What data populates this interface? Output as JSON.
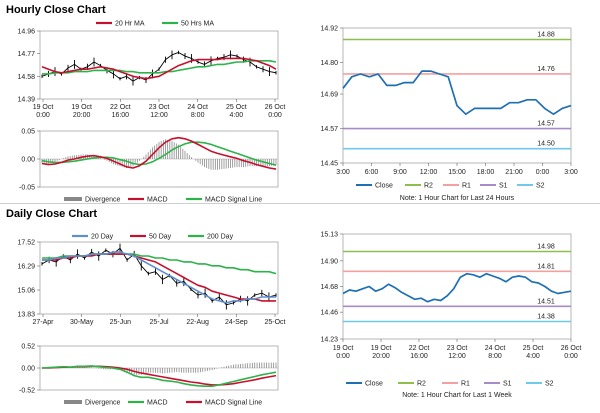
{
  "sections": {
    "hourly_title": "Hourly Close Chart",
    "daily_title": "Daily Close Chart"
  },
  "colors": {
    "close": "#1f6fb4",
    "ma_short": "#c8102e",
    "ma_long": "#2db34a",
    "ma_20_daily": "#5b8fd0",
    "r2": "#8cc04b",
    "r1": "#f2a0a0",
    "s1": "#a98bc9",
    "s2": "#6fc9e8",
    "divergence": "#888888",
    "price_bars": "#000000"
  },
  "chart_data": [
    {
      "id": "hourly_price",
      "type": "line",
      "legend": [
        "20 Hr MA",
        "50 Hrs MA"
      ],
      "legend_position": "top",
      "ylim": [
        14.39,
        14.96
      ],
      "yticks": [
        "14.96",
        "14.77",
        "14.58",
        "14.39"
      ],
      "ytick_values": [
        14.96,
        14.77,
        14.58,
        14.39
      ],
      "xticks": [
        {
          "l1": "19 Oct",
          "l2": "0:00"
        },
        {
          "l1": "19 Oct",
          "l2": "20:00"
        },
        {
          "l1": "22 Oct",
          "l2": "16:00"
        },
        {
          "l1": "23 Oct",
          "l2": "12:00"
        },
        {
          "l1": "24 Oct",
          "l2": "8:00"
        },
        {
          "l1": "25 Oct",
          "l2": "4:00"
        },
        {
          "l1": "26 Oct",
          "l2": "0:00"
        }
      ],
      "series": [
        {
          "name": "Close",
          "values": [
            14.58,
            14.6,
            14.62,
            14.6,
            14.65,
            14.68,
            14.64,
            14.66,
            14.7,
            14.67,
            14.63,
            14.6,
            14.56,
            14.58,
            14.54,
            14.57,
            14.55,
            14.6,
            14.64,
            14.72,
            14.76,
            14.78,
            14.75,
            14.73,
            14.7,
            14.68,
            14.71,
            14.73,
            14.74,
            14.76,
            14.75,
            14.72,
            14.7,
            14.66,
            14.64,
            14.62,
            14.61
          ]
        },
        {
          "name": "20 Hr MA",
          "values": [
            14.66,
            14.64,
            14.62,
            14.61,
            14.62,
            14.63,
            14.64,
            14.64,
            14.65,
            14.66,
            14.65,
            14.64,
            14.62,
            14.6,
            14.58,
            14.57,
            14.56,
            14.57,
            14.58,
            14.61,
            14.64,
            14.67,
            14.69,
            14.71,
            14.72,
            14.72,
            14.72,
            14.72,
            14.73,
            14.73,
            14.73,
            14.73,
            14.72,
            14.71,
            14.69,
            14.67,
            14.64
          ]
        },
        {
          "name": "50 Hrs MA",
          "values": [
            14.6,
            14.6,
            14.61,
            14.61,
            14.61,
            14.62,
            14.62,
            14.62,
            14.63,
            14.63,
            14.63,
            14.63,
            14.63,
            14.62,
            14.62,
            14.61,
            14.61,
            14.61,
            14.61,
            14.62,
            14.62,
            14.63,
            14.64,
            14.65,
            14.66,
            14.66,
            14.67,
            14.68,
            14.68,
            14.69,
            14.7,
            14.7,
            14.71,
            14.71,
            14.71,
            14.71,
            14.7
          ]
        }
      ]
    },
    {
      "id": "hourly_macd",
      "type": "line",
      "legend": [
        "Divergence",
        "MACD",
        "MACD Signal Line"
      ],
      "legend_position": "bottom",
      "ylim": [
        -0.05,
        0.05
      ],
      "yticks": [
        "0.05",
        "0.00",
        "-0.05"
      ],
      "ytick_values": [
        0.05,
        0.0,
        -0.05
      ],
      "series": [
        {
          "name": "MACD",
          "values": [
            -0.008,
            -0.01,
            -0.009,
            -0.006,
            -0.002,
            0.0,
            0.003,
            0.005,
            0.006,
            0.004,
            0.001,
            -0.004,
            -0.009,
            -0.014,
            -0.016,
            -0.012,
            -0.004,
            0.008,
            0.02,
            0.03,
            0.036,
            0.038,
            0.036,
            0.032,
            0.026,
            0.02,
            0.014,
            0.01,
            0.007,
            0.004,
            0.001,
            -0.003,
            -0.006,
            -0.01,
            -0.013,
            -0.016,
            -0.018
          ]
        },
        {
          "name": "MACD Signal Line",
          "values": [
            -0.003,
            -0.005,
            -0.006,
            -0.006,
            -0.005,
            -0.004,
            -0.002,
            0.0,
            0.002,
            0.003,
            0.003,
            0.002,
            -0.001,
            -0.004,
            -0.008,
            -0.01,
            -0.009,
            -0.005,
            0.001,
            0.008,
            0.016,
            0.022,
            0.027,
            0.03,
            0.03,
            0.029,
            0.026,
            0.022,
            0.018,
            0.014,
            0.01,
            0.006,
            0.002,
            -0.002,
            -0.005,
            -0.008,
            -0.011
          ]
        }
      ]
    },
    {
      "id": "hourly_24h",
      "type": "line",
      "title_note": "Note: 1 Hour Chart for Last 24 Hours",
      "ylim": [
        14.45,
        14.92
      ],
      "yticks": [
        "14.92",
        "14.80",
        "14.69",
        "14.57",
        "14.45"
      ],
      "ytick_values": [
        14.92,
        14.8,
        14.69,
        14.57,
        14.45
      ],
      "xticks": [
        "3:00",
        "6:00",
        "9:00",
        "12:00",
        "15:00",
        "18:00",
        "21:00",
        "0:00",
        "3:00"
      ],
      "levels": [
        {
          "name": "R2",
          "value": 14.88,
          "label": "14.88"
        },
        {
          "name": "R1",
          "value": 14.76,
          "label": "14.76"
        },
        {
          "name": "S1",
          "value": 14.57,
          "label": "14.57"
        },
        {
          "name": "S2",
          "value": 14.5,
          "label": "14.50"
        }
      ],
      "legend": [
        "Close",
        "R2",
        "R1",
        "S1",
        "S2"
      ],
      "series": [
        {
          "name": "Close",
          "values": [
            14.71,
            14.75,
            14.76,
            14.75,
            14.76,
            14.72,
            14.72,
            14.73,
            14.73,
            14.77,
            14.77,
            14.76,
            14.75,
            14.65,
            14.62,
            14.64,
            14.64,
            14.64,
            14.64,
            14.66,
            14.66,
            14.67,
            14.67,
            14.64,
            14.62,
            14.64,
            14.65
          ]
        }
      ]
    },
    {
      "id": "daily_price",
      "type": "line",
      "legend": [
        "20 Day",
        "50 Day",
        "200 Day"
      ],
      "legend_position": "top",
      "ylim": [
        13.83,
        17.52
      ],
      "yticks": [
        "17.52",
        "16.29",
        "15.06",
        "13.83"
      ],
      "ytick_values": [
        17.52,
        16.29,
        15.06,
        13.83
      ],
      "xticks": [
        "27-Apr",
        "30-May",
        "25-Jun",
        "25-Jul",
        "22-Aug",
        "24-Sep",
        "25-Oct"
      ],
      "series": [
        {
          "name": "Close",
          "values": [
            16.4,
            16.6,
            16.5,
            16.8,
            16.6,
            16.9,
            16.7,
            17.0,
            16.8,
            17.1,
            16.9,
            17.2,
            16.6,
            16.9,
            16.3,
            15.9,
            16.0,
            15.6,
            15.8,
            15.4,
            15.5,
            15.1,
            14.8,
            14.9,
            14.5,
            14.7,
            14.3,
            14.4,
            14.6,
            14.5,
            14.8,
            14.9,
            14.7,
            14.8
          ]
        },
        {
          "name": "20 Day",
          "values": [
            16.6,
            16.6,
            16.7,
            16.7,
            16.8,
            16.8,
            16.8,
            16.9,
            16.9,
            16.9,
            17.0,
            17.0,
            16.9,
            16.8,
            16.6,
            16.4,
            16.2,
            16.0,
            15.8,
            15.6,
            15.4,
            15.2,
            15.0,
            14.8,
            14.6,
            14.5,
            14.4,
            14.5,
            14.5,
            14.6,
            14.6,
            14.7,
            14.7,
            14.7
          ]
        },
        {
          "name": "50 Day",
          "values": [
            16.6,
            16.6,
            16.6,
            16.7,
            16.7,
            16.8,
            16.8,
            16.8,
            16.9,
            16.9,
            16.9,
            16.9,
            16.9,
            16.8,
            16.7,
            16.6,
            16.5,
            16.3,
            16.1,
            15.9,
            15.7,
            15.5,
            15.3,
            15.2,
            15.0,
            14.9,
            14.8,
            14.7,
            14.6,
            14.6,
            14.6,
            14.5,
            14.5,
            14.5
          ]
        },
        {
          "name": "200 Day",
          "values": [
            16.7,
            16.7,
            16.7,
            16.8,
            16.8,
            16.8,
            16.8,
            16.9,
            16.9,
            16.9,
            16.9,
            16.9,
            16.9,
            16.9,
            16.8,
            16.8,
            16.7,
            16.7,
            16.6,
            16.6,
            16.5,
            16.5,
            16.4,
            16.4,
            16.3,
            16.3,
            16.2,
            16.2,
            16.1,
            16.1,
            16.0,
            16.0,
            16.0,
            15.9
          ]
        }
      ]
    },
    {
      "id": "daily_macd",
      "type": "line",
      "legend": [
        "Divergence",
        "MACD",
        "MACD Signal Line"
      ],
      "legend_position": "bottom",
      "ylim": [
        -0.52,
        0.52
      ],
      "yticks": [
        "0.52",
        "0.00",
        "-0.52"
      ],
      "ytick_values": [
        0.52,
        0.0,
        -0.52
      ],
      "series": [
        {
          "name": "MACD",
          "values": [
            0.0,
            0.01,
            0.02,
            0.03,
            0.02,
            0.04,
            0.04,
            0.05,
            0.03,
            0.01,
            0.0,
            -0.03,
            -0.1,
            -0.18,
            -0.22,
            -0.22,
            -0.25,
            -0.29,
            -0.31,
            -0.33,
            -0.37,
            -0.4,
            -0.42,
            -0.43,
            -0.43,
            -0.4,
            -0.36,
            -0.32,
            -0.28,
            -0.24,
            -0.2,
            -0.16,
            -0.13,
            -0.1
          ]
        },
        {
          "name": "MACD Signal Line",
          "values": [
            0.0,
            0.0,
            0.01,
            0.02,
            0.02,
            0.03,
            0.03,
            0.04,
            0.04,
            0.03,
            0.02,
            0.0,
            -0.03,
            -0.08,
            -0.12,
            -0.15,
            -0.18,
            -0.21,
            -0.24,
            -0.27,
            -0.3,
            -0.33,
            -0.35,
            -0.38,
            -0.4,
            -0.4,
            -0.39,
            -0.37,
            -0.34,
            -0.31,
            -0.28,
            -0.24,
            -0.21,
            -0.18
          ]
        }
      ]
    },
    {
      "id": "daily_week",
      "type": "line",
      "title_note": "Note: 1 Hour Chart for Last 1 Week",
      "ylim": [
        14.23,
        15.13
      ],
      "yticks": [
        "15.13",
        "14.90",
        "14.68",
        "14.46",
        "14.23"
      ],
      "ytick_values": [
        15.13,
        14.9,
        14.68,
        14.46,
        14.23
      ],
      "xticks": [
        {
          "l1": "19 Oct",
          "l2": "0:00"
        },
        {
          "l1": "19 Oct",
          "l2": "20:00"
        },
        {
          "l1": "22 Oct",
          "l2": "16:00"
        },
        {
          "l1": "23 Oct",
          "l2": "12:00"
        },
        {
          "l1": "24 Oct",
          "l2": "8:00"
        },
        {
          "l1": "25 Oct",
          "l2": "4:00"
        },
        {
          "l1": "26 Oct",
          "l2": "0:00"
        }
      ],
      "levels": [
        {
          "name": "R2",
          "value": 14.98,
          "label": "14.98"
        },
        {
          "name": "R1",
          "value": 14.81,
          "label": "14.81"
        },
        {
          "name": "S1",
          "value": 14.51,
          "label": "14.51"
        },
        {
          "name": "S2",
          "value": 14.38,
          "label": "14.38"
        }
      ],
      "legend": [
        "Close",
        "R2",
        "R1",
        "S1",
        "S2"
      ],
      "series": [
        {
          "name": "Close",
          "values": [
            14.62,
            14.65,
            14.64,
            14.66,
            14.68,
            14.64,
            14.66,
            14.7,
            14.67,
            14.63,
            14.6,
            14.57,
            14.58,
            14.55,
            14.57,
            14.56,
            14.6,
            14.66,
            14.76,
            14.79,
            14.78,
            14.76,
            14.79,
            14.77,
            14.75,
            14.72,
            14.76,
            14.77,
            14.76,
            14.72,
            14.71,
            14.68,
            14.64,
            14.62,
            14.63,
            14.64
          ]
        }
      ]
    }
  ]
}
